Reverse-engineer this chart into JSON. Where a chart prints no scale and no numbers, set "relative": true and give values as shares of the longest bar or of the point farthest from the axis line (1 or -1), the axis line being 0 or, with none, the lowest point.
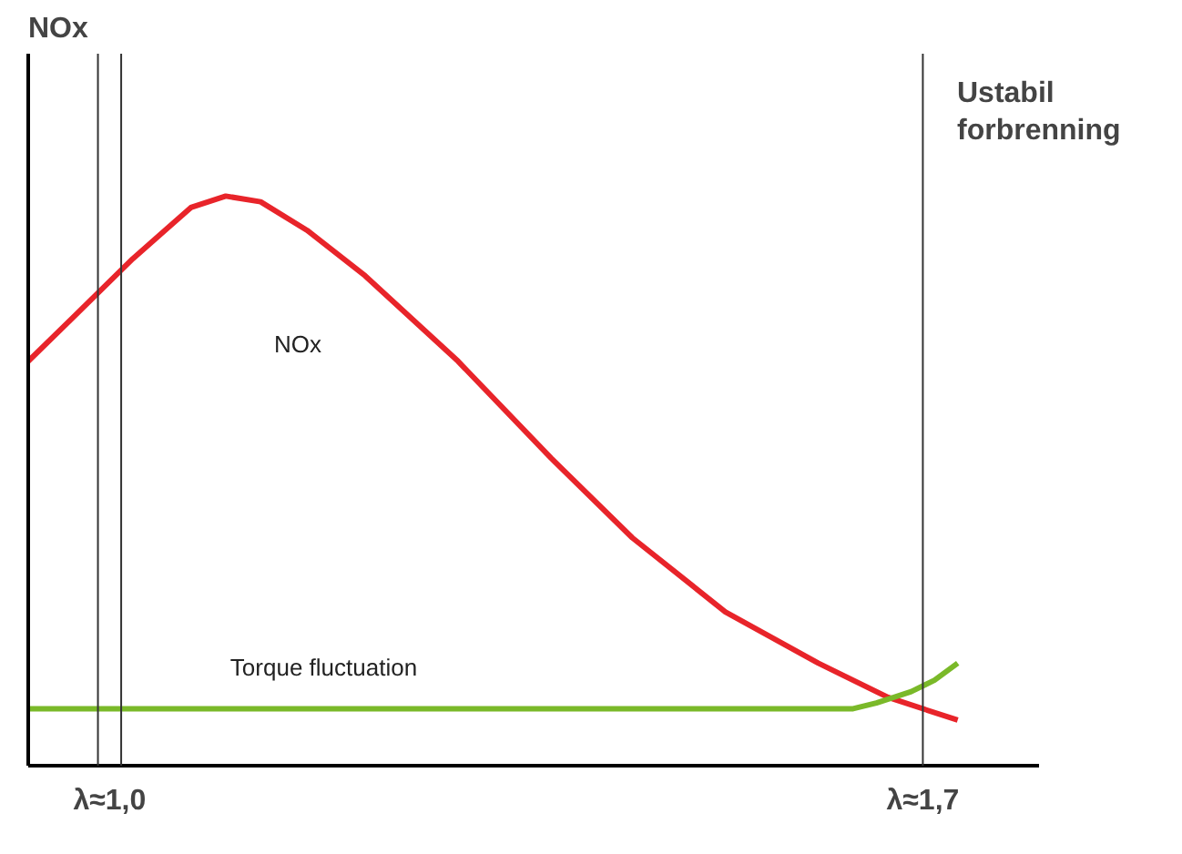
{
  "chart_data": {
    "type": "line",
    "relative": true,
    "xlim": [
      0.93,
      1.8
    ],
    "xticks": [
      {
        "value": 1.0,
        "label": "λ≈1,0"
      },
      {
        "value": 1.7,
        "label": "λ≈1,7"
      }
    ],
    "tick_labels": "x",
    "grid": false,
    "legend": false,
    "series": [
      {
        "name": "NOx",
        "color": "#e8242a",
        "x": [
          0.93,
          0.97,
          1.02,
          1.07,
          1.1,
          1.13,
          1.17,
          1.22,
          1.3,
          1.38,
          1.45,
          1.53,
          1.61,
          1.67,
          1.73
        ],
        "values": [
          0.71,
          0.79,
          0.89,
          0.98,
          1,
          0.99,
          0.94,
          0.86,
          0.71,
          0.54,
          0.4,
          0.27,
          0.18,
          0.12,
          0.08
        ]
      },
      {
        "name": "Torque fluctuation",
        "color": "#7ab929",
        "x": [
          0.93,
          1.2,
          1.4,
          1.64,
          1.66,
          1.69,
          1.71,
          1.73
        ],
        "values": [
          0.1,
          0.1,
          0.1,
          0.1,
          0.11,
          0.13,
          0.15,
          0.18
        ]
      }
    ],
    "ref_lines": [
      {
        "axis": "x",
        "value": 0.99
      },
      {
        "axis": "x",
        "value": 1.01
      },
      {
        "axis": "x",
        "value": 1.7
      }
    ],
    "annotations": [
      "NOx",
      "Ustabil forbrenning"
    ]
  }
}
